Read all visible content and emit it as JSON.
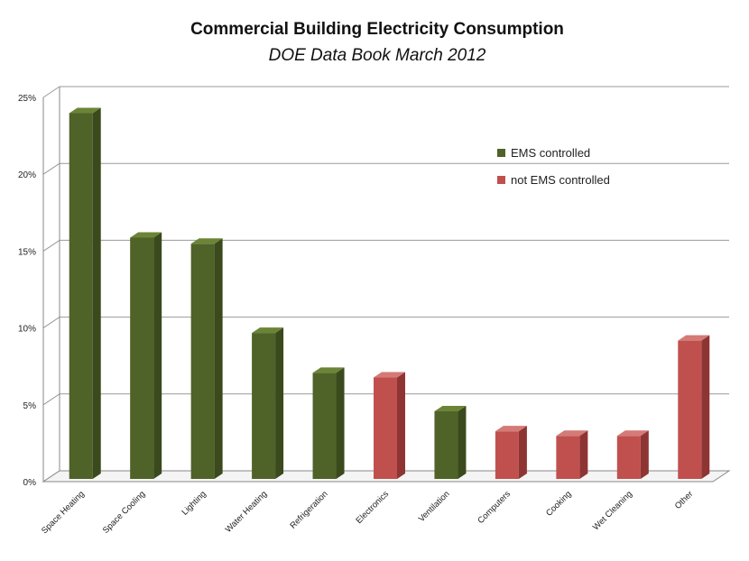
{
  "chart_data": {
    "type": "bar",
    "title": "Commercial Building Electricity Consumption",
    "subtitle": "DOE Data Book March 2012",
    "xlabel": "",
    "ylabel": "",
    "ylim": [
      0,
      25
    ],
    "yticks": [
      "0%",
      "5%",
      "10%",
      "15%",
      "20%",
      "25%"
    ],
    "grid": true,
    "legend_position": "top-right",
    "categories": [
      "Space Heating",
      "Space Cooling",
      "Lighting",
      "Water Heating",
      "Refrigeration",
      "Electronics",
      "Ventilation",
      "Computers",
      "Cooking",
      "Wet Cleaning",
      "Other"
    ],
    "values": [
      23.8,
      15.7,
      15.3,
      9.5,
      6.9,
      6.6,
      4.4,
      3.1,
      2.8,
      2.8,
      9.0
    ],
    "groups": [
      "EMS",
      "not",
      "not"
    ],
    "bar_group": [
      "ems",
      "ems",
      "ems",
      "ems",
      "ems",
      "not",
      "ems",
      "not",
      "not",
      "not",
      "not"
    ],
    "series": [
      {
        "key": "ems",
        "name": "EMS controlled",
        "color": "#4f6228",
        "side": "#3a4a1c",
        "top": "#6b8436"
      },
      {
        "key": "not",
        "name": "not EMS controlled",
        "color": "#c0504d",
        "side": "#8e3533",
        "top": "#d47a77"
      }
    ]
  }
}
